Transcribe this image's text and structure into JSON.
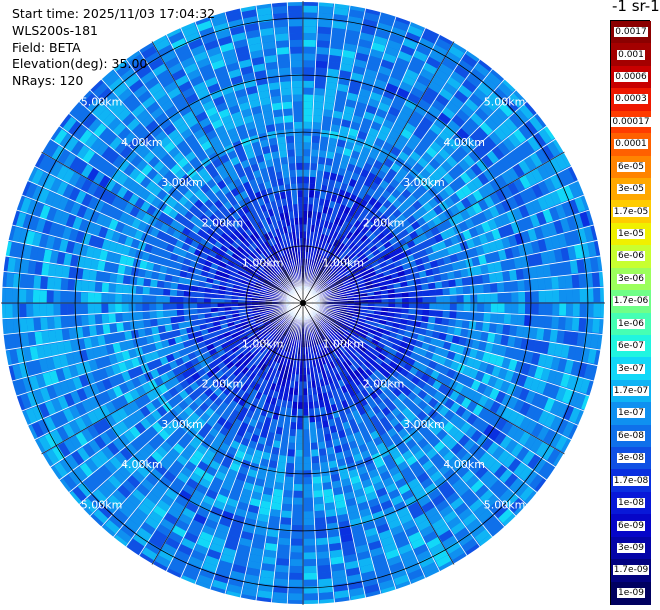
{
  "info": {
    "start_time": "Start time: 2025/11/03 17:04:32",
    "instrument": "WLS200s-181",
    "field": "Field: BETA",
    "elevation": "Elevation(deg): 35.00",
    "nrays": "NRays: 120"
  },
  "colorbar": {
    "title": "-1 sr-1",
    "labels": [
      "0.0017",
      "0.001",
      "0.0006",
      "0.0003",
      "0.00017",
      "0.0001",
      "6e-05",
      "3e-05",
      "1.7e-05",
      "1e-05",
      "6e-06",
      "3e-06",
      "1.7e-06",
      "1e-06",
      "6e-07",
      "3e-07",
      "1.7e-07",
      "1e-07",
      "6e-08",
      "3e-08",
      "1.7e-08",
      "1e-08",
      "6e-09",
      "3e-09",
      "1.7e-09",
      "1e-09"
    ],
    "colors": [
      "#8b0000",
      "#a40000",
      "#c80000",
      "#ee1800",
      "#ff3c00",
      "#ff6000",
      "#ff8400",
      "#ffa800",
      "#ffcc00",
      "#f0f000",
      "#c8ff30",
      "#9cff5c",
      "#70ff88",
      "#46ffb4",
      "#20f5e0",
      "#12d8f8",
      "#0fb4f5",
      "#0f90f0",
      "#0f70ea",
      "#0f50e4",
      "#0a30e0",
      "#0818d8",
      "#0606c8",
      "#0404a8",
      "#020280",
      "#000060"
    ]
  },
  "chart_data": {
    "type": "heatmap",
    "projection": "polar (PPI)",
    "field": "BETA",
    "elevation_deg": 35.0,
    "n_rays": 120,
    "range_rings_km": [
      1.0,
      2.0,
      3.0,
      4.0,
      5.0
    ],
    "ring_labels": [
      "1.00km",
      "2.00km",
      "3.00km",
      "4.00km",
      "5.00km"
    ],
    "max_range_km": 5.3,
    "color_scale": "log",
    "value_range": [
      1e-09,
      0.0017
    ],
    "approx_backscatter_by_range": [
      {
        "range_km": 0.5,
        "value": 2e-09
      },
      {
        "range_km": 1.0,
        "value": 1e-08
      },
      {
        "range_km": 1.5,
        "value": 1.5e-08
      },
      {
        "range_km": 2.0,
        "value": 3e-08
      },
      {
        "range_km": 2.5,
        "value": 6e-08
      },
      {
        "range_km": 3.0,
        "value": 1e-07
      },
      {
        "range_km": 3.5,
        "value": 1.2e-07
      },
      {
        "range_km": 4.0,
        "value": 6e-08
      },
      {
        "range_km": 4.5,
        "value": 1e-07
      },
      {
        "range_km": 5.0,
        "value": 8e-08
      }
    ]
  }
}
